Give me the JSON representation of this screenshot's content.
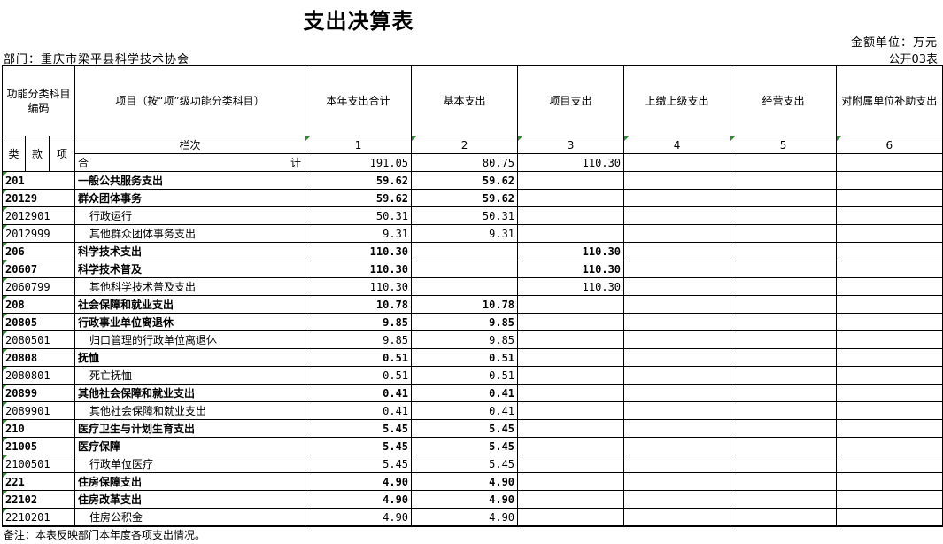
{
  "title": "支出决算表",
  "unit": "金额单位：万元",
  "form_no": "公开03表",
  "department": "部门：重庆市梁平县科学技术协会",
  "headers": {
    "code": "功能分类科目编码",
    "item": "项目（按“项”级功能分类科目）",
    "cols": [
      "本年支出合计",
      "基本支出",
      "项目支出",
      "上缴上级支出",
      "经营支出",
      "对附属单位补助支出"
    ],
    "lei": "类",
    "kuan": "款",
    "xiang": "项",
    "lanci": "栏次",
    "lanci_nums": [
      "1",
      "2",
      "3",
      "4",
      "5",
      "6"
    ]
  },
  "total": {
    "label_left": "合",
    "label_right": "计",
    "values": [
      "191.05",
      "80.75",
      "110.30",
      "",
      "",
      ""
    ]
  },
  "rows": [
    {
      "code": "201",
      "name": "一般公共服务支出",
      "values": [
        "59.62",
        "59.62",
        "",
        "",
        "",
        ""
      ]
    },
    {
      "code": "20129",
      "name": "群众团体事务",
      "values": [
        "59.62",
        "59.62",
        "",
        "",
        "",
        ""
      ]
    },
    {
      "code": "2012901",
      "name": "行政运行",
      "values": [
        "50.31",
        "50.31",
        "",
        "",
        "",
        ""
      ]
    },
    {
      "code": "2012999",
      "name": "其他群众团体事务支出",
      "values": [
        "9.31",
        "9.31",
        "",
        "",
        "",
        ""
      ]
    },
    {
      "code": "206",
      "name": "科学技术支出",
      "values": [
        "110.30",
        "",
        "110.30",
        "",
        "",
        ""
      ]
    },
    {
      "code": "20607",
      "name": "科学技术普及",
      "values": [
        "110.30",
        "",
        "110.30",
        "",
        "",
        ""
      ]
    },
    {
      "code": "2060799",
      "name": "其他科学技术普及支出",
      "values": [
        "110.30",
        "",
        "110.30",
        "",
        "",
        ""
      ]
    },
    {
      "code": "208",
      "name": "社会保障和就业支出",
      "values": [
        "10.78",
        "10.78",
        "",
        "",
        "",
        ""
      ]
    },
    {
      "code": "20805",
      "name": "行政事业单位离退休",
      "values": [
        "9.85",
        "9.85",
        "",
        "",
        "",
        ""
      ]
    },
    {
      "code": "2080501",
      "name": "归口管理的行政单位离退休",
      "values": [
        "9.85",
        "9.85",
        "",
        "",
        "",
        ""
      ]
    },
    {
      "code": "20808",
      "name": "抚恤",
      "values": [
        "0.51",
        "0.51",
        "",
        "",
        "",
        ""
      ]
    },
    {
      "code": "2080801",
      "name": "死亡抚恤",
      "values": [
        "0.51",
        "0.51",
        "",
        "",
        "",
        ""
      ]
    },
    {
      "code": "20899",
      "name": "其他社会保障和就业支出",
      "values": [
        "0.41",
        "0.41",
        "",
        "",
        "",
        ""
      ]
    },
    {
      "code": "2089901",
      "name": "其他社会保障和就业支出",
      "values": [
        "0.41",
        "0.41",
        "",
        "",
        "",
        ""
      ]
    },
    {
      "code": "210",
      "name": "医疗卫生与计划生育支出",
      "values": [
        "5.45",
        "5.45",
        "",
        "",
        "",
        ""
      ]
    },
    {
      "code": "21005",
      "name": "医疗保障",
      "values": [
        "5.45",
        "5.45",
        "",
        "",
        "",
        ""
      ]
    },
    {
      "code": "2100501",
      "name": "行政单位医疗",
      "values": [
        "5.45",
        "5.45",
        "",
        "",
        "",
        ""
      ]
    },
    {
      "code": "221",
      "name": "住房保障支出",
      "values": [
        "4.90",
        "4.90",
        "",
        "",
        "",
        ""
      ]
    },
    {
      "code": "22102",
      "name": "住房改革支出",
      "values": [
        "4.90",
        "4.90",
        "",
        "",
        "",
        ""
      ]
    },
    {
      "code": "2210201",
      "name": "住房公积金",
      "values": [
        "4.90",
        "4.90",
        "",
        "",
        "",
        ""
      ]
    }
  ],
  "note": "备注：本表反映部门本年度各项支出情况。"
}
